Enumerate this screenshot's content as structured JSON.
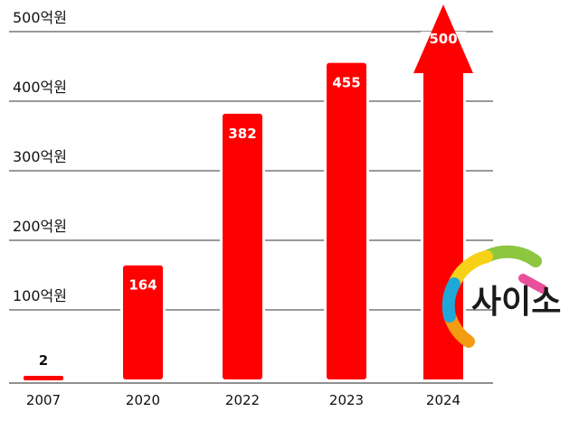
{
  "chart_data": {
    "type": "bar",
    "categories": [
      "2007",
      "2020",
      "2022",
      "2023",
      "2024"
    ],
    "values": [
      2,
      164,
      382,
      455,
      500
    ],
    "value_labels": [
      "2",
      "164",
      "382",
      "455",
      "500"
    ],
    "y_tick_labels": [
      "100억원",
      "200억원",
      "300억원",
      "400억원",
      "500억원"
    ],
    "y_ticks": [
      100,
      200,
      300,
      400,
      500
    ],
    "ylim": [
      0,
      500
    ],
    "grid": true,
    "bar_color": "#ff0000",
    "last_bar_shape": "arrow"
  },
  "logo": {
    "text": "사이소",
    "ring_colors": [
      "#8dc63f",
      "#f7d117",
      "#f39c12",
      "#1fa7d8",
      "#e94f9a"
    ]
  }
}
